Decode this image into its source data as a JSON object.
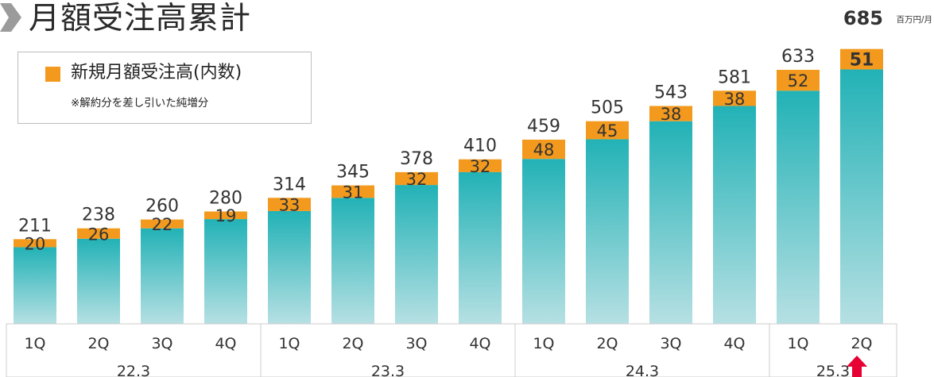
{
  "title": "月額受注高累計",
  "legend": {
    "label": "新規月額受注高(内数)",
    "note": "※解約分を差し引いた純増分"
  },
  "latest_value": "685",
  "unit": "百万円/月",
  "colors": {
    "accent_orange": "#f39a1e",
    "bar_teal_top": "#22b2b6",
    "bar_teal_bottom": "#b6e0e3",
    "chevron_gray": "#9b9b9b",
    "arrow_red": "#e60033",
    "gridline": "#cccccc"
  },
  "chart_data": {
    "type": "bar",
    "stacked": true,
    "title": "月額受注高累計",
    "categories": [
      "1Q",
      "2Q",
      "3Q",
      "4Q",
      "1Q",
      "2Q",
      "3Q",
      "4Q",
      "1Q",
      "2Q",
      "3Q",
      "4Q",
      "1Q",
      "2Q"
    ],
    "groups": [
      {
        "label": "22.3",
        "count": 4
      },
      {
        "label": "23.3",
        "count": 4
      },
      {
        "label": "24.3",
        "count": 4
      },
      {
        "label": "25.3",
        "count": 2
      }
    ],
    "totals": [
      211,
      238,
      260,
      280,
      314,
      345,
      378,
      410,
      459,
      505,
      543,
      581,
      633,
      685
    ],
    "series": [
      {
        "name": "新規月額受注高(内数)",
        "values": [
          20,
          26,
          22,
          19,
          33,
          31,
          32,
          32,
          48,
          45,
          38,
          38,
          52,
          51
        ]
      }
    ],
    "ylim": [
      0,
      720
    ],
    "grid": false,
    "legend_position": "top-left"
  }
}
